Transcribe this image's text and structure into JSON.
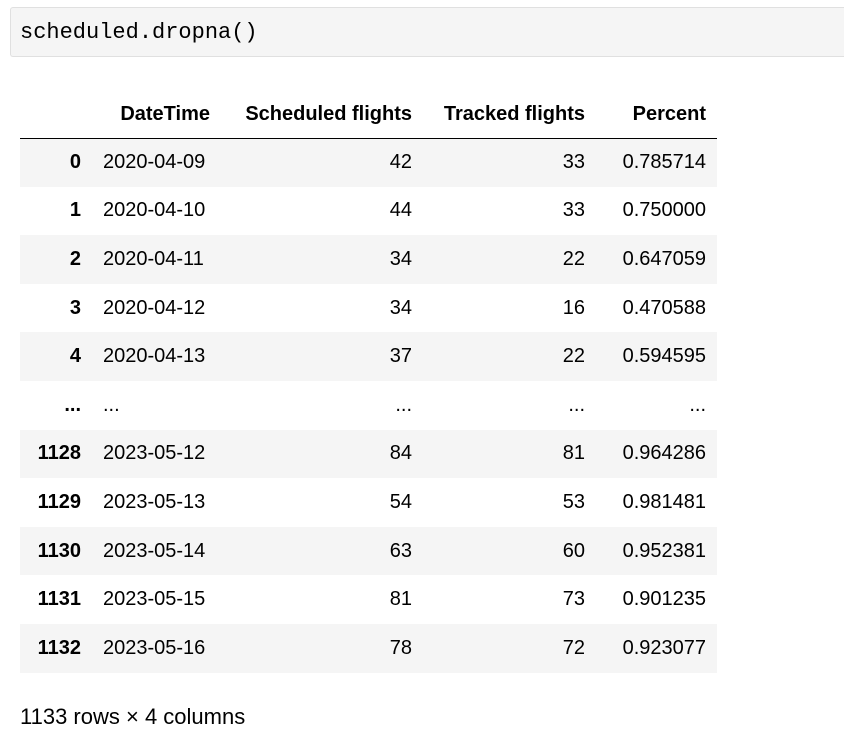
{
  "code_cell": {
    "source": "scheduled.dropna()"
  },
  "dataframe": {
    "columns": [
      "",
      "DateTime",
      "Scheduled flights",
      "Tracked flights",
      "Percent"
    ],
    "rows": [
      [
        "0",
        "2020-04-09",
        "42",
        "33",
        "0.785714"
      ],
      [
        "1",
        "2020-04-10",
        "44",
        "33",
        "0.750000"
      ],
      [
        "2",
        "2020-04-11",
        "34",
        "22",
        "0.647059"
      ],
      [
        "3",
        "2020-04-12",
        "34",
        "16",
        "0.470588"
      ],
      [
        "4",
        "2020-04-13",
        "37",
        "22",
        "0.594595"
      ],
      [
        "...",
        "...",
        "...",
        "...",
        "..."
      ],
      [
        "1128",
        "2023-05-12",
        "84",
        "81",
        "0.964286"
      ],
      [
        "1129",
        "2023-05-13",
        "54",
        "53",
        "0.981481"
      ],
      [
        "1130",
        "2023-05-14",
        "63",
        "60",
        "0.952381"
      ],
      [
        "1131",
        "2023-05-15",
        "81",
        "73",
        "0.901235"
      ],
      [
        "1132",
        "2023-05-16",
        "78",
        "72",
        "0.923077"
      ]
    ],
    "shape_text": "1133 rows × 4 columns"
  }
}
